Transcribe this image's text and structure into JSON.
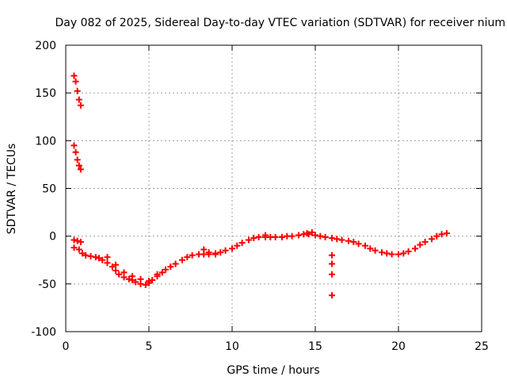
{
  "chart_data": {
    "type": "scatter",
    "title": "Day 082 of 2025, Sidereal Day-to-day VTEC variation (SDTVAR) for receiver nium",
    "xlabel": "GPS time / hours",
    "ylabel": "SDTVAR / TECUs",
    "xlim": [
      0,
      25
    ],
    "ylim": [
      -100,
      200
    ],
    "xticks": [
      0,
      5,
      10,
      15,
      20,
      25
    ],
    "yticks": [
      -100,
      -50,
      0,
      50,
      100,
      150,
      200
    ],
    "grid": true,
    "marker": "+",
    "series": [
      {
        "name": "SDTVAR",
        "color": "#ff0000",
        "x": [
          0.5,
          0.6,
          0.7,
          0.8,
          0.9,
          0.5,
          0.6,
          0.7,
          0.8,
          0.9,
          0.5,
          0.7,
          0.9,
          0.5,
          0.8,
          1.0,
          1.2,
          1.5,
          1.8,
          2.0,
          2.2,
          2.5,
          2.8,
          3.0,
          3.2,
          3.5,
          3.8,
          4.0,
          4.2,
          4.5,
          4.8,
          5.0,
          5.2,
          5.5,
          5.8,
          6.0,
          6.3,
          6.6,
          7.0,
          7.3,
          7.6,
          8.0,
          8.3,
          8.6,
          9.0,
          9.3,
          9.6,
          10.0,
          10.3,
          10.6,
          11.0,
          11.3,
          11.6,
          12.0,
          12.3,
          12.6,
          13.0,
          13.3,
          13.6,
          14.0,
          14.3,
          14.6,
          15.0,
          15.3,
          15.6,
          16.0,
          16.3,
          16.6,
          17.0,
          17.3,
          17.6,
          18.0,
          18.3,
          18.6,
          19.0,
          19.3,
          19.6,
          20.0,
          20.3,
          20.6,
          21.0,
          21.3,
          21.6,
          22.0,
          22.3,
          22.6,
          22.9,
          16.0,
          16.0,
          16.0,
          16.0,
          2.5,
          3.0,
          3.5,
          4.0,
          4.5,
          5.0,
          5.5,
          8.3,
          8.6,
          9.0,
          12.0,
          14.5,
          14.8
        ],
        "y": [
          168,
          162,
          152,
          143,
          137,
          95,
          88,
          80,
          74,
          70,
          -4,
          -5,
          -6,
          -12,
          -14,
          -18,
          -20,
          -21,
          -22,
          -23,
          -25,
          -28,
          -32,
          -36,
          -40,
          -43,
          -45,
          -46,
          -48,
          -50,
          -51,
          -49,
          -46,
          -42,
          -38,
          -35,
          -32,
          -29,
          -25,
          -22,
          -20,
          -19,
          -19,
          -19,
          -18,
          -17,
          -15,
          -13,
          -10,
          -7,
          -4,
          -2,
          -1,
          -1,
          -1,
          -1,
          -1,
          0,
          0,
          1,
          2,
          2,
          1,
          0,
          -1,
          -2,
          -3,
          -4,
          -5,
          -6,
          -8,
          -10,
          -13,
          -15,
          -17,
          -18,
          -19,
          -19,
          -18,
          -16,
          -13,
          -9,
          -6,
          -3,
          0,
          2,
          3,
          -20,
          -29,
          -40,
          -62,
          -22,
          -30,
          -38,
          -42,
          -45,
          -47,
          -40,
          -14,
          -17,
          -19,
          1,
          3,
          4
        ]
      }
    ]
  }
}
